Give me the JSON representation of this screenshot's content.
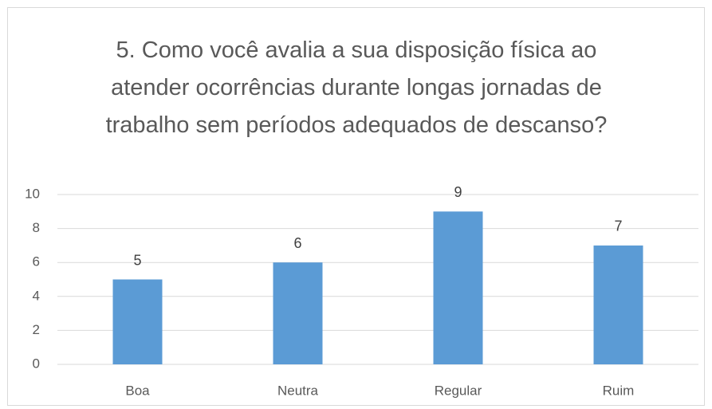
{
  "chart_data": {
    "type": "bar",
    "title": "5. Como você avalia a sua disposição física ao atender ocorrências durante longas jornadas de trabalho sem períodos adequados de descanso?",
    "categories": [
      "Boa",
      "Neutra",
      "Regular",
      "Ruim"
    ],
    "values": [
      5,
      6,
      9,
      7
    ],
    "color": "#5b9bd5",
    "ylim": [
      0,
      10
    ],
    "yticks": [
      0,
      2,
      4,
      6,
      8,
      10
    ],
    "grid": true
  }
}
